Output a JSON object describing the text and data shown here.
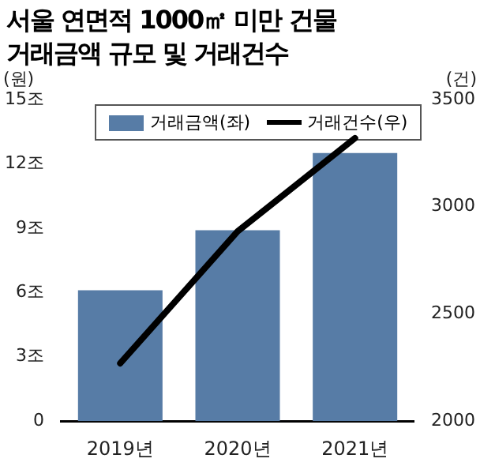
{
  "chart_data": {
    "type": "bar",
    "title": "서울 연면적 1000㎡ 미만 건물\n거래금액 규모 및 거래건수",
    "ylabel": "(원)",
    "y2label": "(건)",
    "categories": [
      "2019년",
      "2020년",
      "2021년"
    ],
    "series": [
      {
        "name": "거래금액(좌)",
        "color": "#577ca6",
        "values": [
          6.1,
          8.9,
          12.5
        ]
      },
      {
        "name": "거래건수(우)",
        "type": "line",
        "axis": "y2",
        "color": "#000000",
        "values": [
          2270,
          2885,
          3320
        ]
      }
    ],
    "ylim": [
      0,
      15
    ],
    "yticks": [
      0,
      {
        "value": 3,
        "label": "3조"
      },
      {
        "value": 6,
        "label": "6조"
      },
      {
        "value": 9,
        "label": "9조"
      },
      {
        "value": 12,
        "label": "12조"
      },
      {
        "value": 15,
        "label": "15조"
      }
    ],
    "y2lim": [
      2000,
      3500
    ],
    "y2ticks": [
      2000,
      2500,
      3000,
      3500
    ],
    "grid": false,
    "legend": "top",
    "marker": "none"
  }
}
